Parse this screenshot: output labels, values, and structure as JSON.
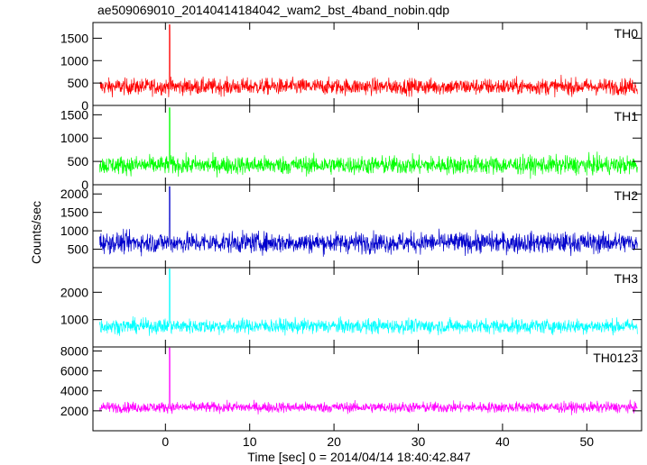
{
  "chart_data": {
    "type": "line",
    "title": "ae509069010_20140414184042_wam2_bst_4band_nobin.qdp",
    "xlabel": "Time [sec] 0 = 2014/04/14 18:40:42.847",
    "ylabel": "Counts/sec",
    "xlim": [
      -8.6,
      56.5
    ],
    "x_ticks": [
      0,
      10,
      20,
      30,
      40,
      50
    ],
    "x_tick_labels": [
      "0",
      "10",
      "20",
      "30",
      "40",
      "50"
    ],
    "x_range": [
      -7.8,
      56.0
    ],
    "burst_time": 0.5,
    "panels": [
      {
        "name": "TH0",
        "color": "#ff0000",
        "ylim": [
          0,
          1850
        ],
        "ticks": [
          0,
          500,
          1000,
          1500
        ],
        "tick_labels": [
          "0",
          "500",
          "1000",
          "1500"
        ],
        "mean": 420,
        "noise": 130,
        "peak": 1800
      },
      {
        "name": "TH1",
        "color": "#00ff00",
        "ylim": [
          0,
          1700
        ],
        "ticks": [
          0,
          500,
          1000,
          1500
        ],
        "tick_labels": [
          "0",
          "500",
          "1000",
          "1500"
        ],
        "mean": 420,
        "noise": 140,
        "peak": 1650
      },
      {
        "name": "TH2",
        "color": "#0000cc",
        "ylim": [
          0,
          2250
        ],
        "ticks": [
          500,
          1000,
          1500,
          2000
        ],
        "tick_labels": [
          "500",
          "1000",
          "1500",
          "2000"
        ],
        "mean": 680,
        "noise": 200,
        "peak": 2200
      },
      {
        "name": "TH3",
        "color": "#00ffff",
        "ylim": [
          0,
          2900
        ],
        "ticks": [
          1000,
          2000
        ],
        "tick_labels": [
          "1000",
          "2000"
        ],
        "mean": 760,
        "noise": 190,
        "peak": 2850
      },
      {
        "name": "TH0123",
        "color": "#ff00ff",
        "ylim": [
          0,
          8400
        ],
        "ticks": [
          2000,
          4000,
          6000,
          8000
        ],
        "tick_labels": [
          "2000",
          "4000",
          "6000",
          "8000"
        ],
        "mean": 2350,
        "noise": 380,
        "peak": 8300
      }
    ]
  }
}
